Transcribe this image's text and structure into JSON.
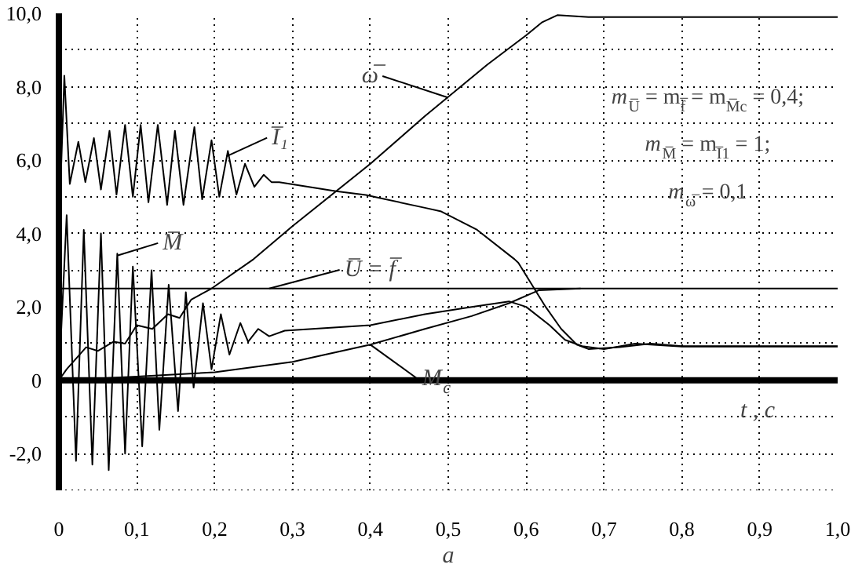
{
  "chart_data": {
    "type": "line",
    "xlabel": "t , c",
    "xlim": [
      0,
      1
    ],
    "ylim": [
      -3,
      10
    ],
    "xticks": [
      0,
      {
        "value": 0.1,
        "label": "0,1"
      },
      {
        "value": 0.2,
        "label": "0,2"
      },
      {
        "value": 0.3,
        "label": "0,3"
      },
      {
        "value": 0.4,
        "label": "0,4"
      },
      {
        "value": 0.5,
        "label": "0,5"
      },
      {
        "value": 0.6,
        "label": "0,6"
      },
      {
        "value": 0.7,
        "label": "0,7"
      },
      {
        "value": 0.8,
        "label": "0,8"
      },
      {
        "value": 0.9,
        "label": "0,9"
      },
      {
        "value": 1,
        "label": "1,0"
      }
    ],
    "yticks": [
      {
        "value": -2,
        "label": "-2,0"
      },
      {
        "value": -1,
        "label": null
      },
      0,
      {
        "value": 1,
        "label": null
      },
      {
        "value": 2,
        "label": "2,0"
      },
      {
        "value": 3,
        "label": null
      },
      {
        "value": 4,
        "label": "4,0"
      },
      {
        "value": 5,
        "label": null
      },
      {
        "value": 6,
        "label": "6,0"
      },
      {
        "value": 7,
        "label": null
      },
      {
        "value": 8,
        "label": "8,0"
      },
      {
        "value": 9,
        "label": null
      },
      {
        "value": 10,
        "label": "10,0"
      }
    ],
    "grid": true,
    "line_style": "solid",
    "series": [
      {
        "color": "#000000",
        "x": [
          0,
          0.007,
          0.014,
          0.025,
          0.034,
          0.045,
          0.054,
          0.065,
          0.074,
          0.085,
          0.095,
          0.105,
          0.115,
          0.127,
          0.139,
          0.149,
          0.16,
          0.174,
          0.184,
          0.196,
          0.206,
          0.217,
          0.228,
          0.239,
          0.251,
          0.263,
          0.273,
          0.283,
          0.356,
          0.394,
          0.47,
          0.491,
          0.537,
          0.585,
          0.59,
          0.625,
          0.645,
          0.665,
          0.68,
          0.72,
          0.76,
          0.8,
          1.0
        ],
        "values": [
          4.0,
          8.3,
          5.35,
          6.5,
          5.4,
          6.6,
          5.2,
          6.8,
          5.06,
          6.96,
          5.0,
          6.96,
          4.85,
          6.96,
          4.78,
          6.8,
          4.78,
          6.9,
          4.93,
          6.54,
          5.0,
          6.25,
          5.06,
          5.9,
          5.27,
          5.6,
          5.4,
          5.4,
          5.15,
          5.05,
          4.7,
          4.6,
          4.1,
          3.3,
          3.2,
          2.0,
          1.4,
          0.97,
          0.85,
          0.9,
          1.0,
          0.93,
          0.93
        ]
      },
      {
        "color": "#000000",
        "x": [
          0,
          0.01,
          0.022,
          0.032,
          0.043,
          0.054,
          0.064,
          0.075,
          0.085,
          0.095,
          0.107,
          0.119,
          0.129,
          0.141,
          0.153,
          0.163,
          0.173,
          0.185,
          0.196,
          0.208,
          0.219,
          0.233,
          0.243,
          0.256,
          0.27,
          0.29,
          0.4,
          0.47,
          0.53,
          0.578,
          0.6,
          0.63,
          0.65,
          0.672,
          0.7,
          0.74,
          0.8,
          1.0
        ],
        "values": [
          0,
          4.5,
          -2.2,
          4.1,
          -2.3,
          4.0,
          -2.45,
          3.45,
          -2.0,
          3.1,
          -1.8,
          3.0,
          -1.35,
          2.6,
          -0.84,
          2.4,
          -0.2,
          2.1,
          0.3,
          1.8,
          0.7,
          1.56,
          1.05,
          1.4,
          1.2,
          1.35,
          1.5,
          1.8,
          2.0,
          2.15,
          2.0,
          1.5,
          1.1,
          0.93,
          0.85,
          1.0,
          0.92,
          0.92
        ]
      },
      {
        "color": "#000000",
        "x": [
          0,
          0.01,
          0.035,
          0.05,
          0.07,
          0.085,
          0.1,
          0.12,
          0.14,
          0.155,
          0.17,
          0.196,
          0.25,
          0.3,
          0.4,
          0.47,
          0.55,
          0.6,
          0.62,
          0.64,
          0.68,
          0.75,
          1.0
        ],
        "values": [
          0,
          0.3,
          0.9,
          0.8,
          1.05,
          1.0,
          1.5,
          1.4,
          1.8,
          1.7,
          2.2,
          2.5,
          3.3,
          4.2,
          5.9,
          7.2,
          8.6,
          9.4,
          9.75,
          9.95,
          9.9,
          9.9,
          9.9
        ]
      },
      {
        "color": "#000000",
        "x": [
          0,
          0.1,
          0.2,
          0.3,
          0.4,
          0.47,
          0.53,
          0.578,
          0.616,
          0.67
        ],
        "values": [
          0,
          0.1,
          0.22,
          0.5,
          0.97,
          1.4,
          1.75,
          2.1,
          2.45,
          2.5
        ]
      }
    ],
    "ref_lines": [
      {
        "axis": "y",
        "value": 2.5,
        "color": "#000000"
      }
    ],
    "annotations": [
      {
        "text": "ω̅",
        "x": 0.5,
        "y": 7.7
      },
      {
        "text": "I̅₁",
        "x": 0.215,
        "y": 6.1
      },
      {
        "text": "M̅",
        "x": 0.075,
        "y": 3.4
      },
      {
        "text": "U̅ = f̅",
        "x": 0.27,
        "y": 2.5
      },
      {
        "text": "M$_{c}$",
        "x": 0.4,
        "y": 0.97
      },
      "m$_{U̅}$ = m$_{f̅}$ = m$_{M̅c}$ = 0,4;",
      "m$_{M̅}$ = m$_{I̅1}$ = 1;",
      "m$_{ω̅}$ = 0,1",
      "a"
    ]
  }
}
